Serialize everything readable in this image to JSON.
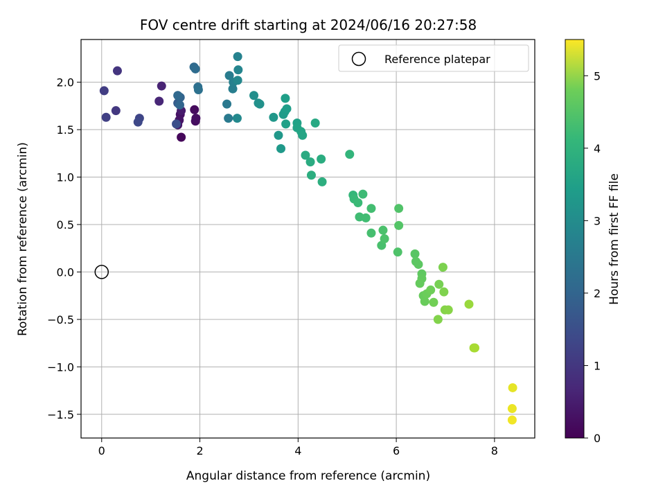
{
  "chart_data": {
    "type": "scatter",
    "title": "FOV centre drift starting at 2024/06/16 20:27:58",
    "xlabel": "Angular distance from reference (arcmin)",
    "ylabel": "Rotation from reference (arcmin)",
    "xlim": [
      -0.42,
      8.82
    ],
    "ylim": [
      -1.75,
      2.45
    ],
    "xticks": [
      0,
      2,
      4,
      6,
      8
    ],
    "xtick_labels": [
      "0",
      "2",
      "4",
      "6",
      "8"
    ],
    "yticks": [
      -1.5,
      -1.0,
      -0.5,
      0.0,
      0.5,
      1.0,
      1.5,
      2.0
    ],
    "ytick_labels": [
      "−1.5",
      "−1.0",
      "−0.5",
      "0.0",
      "0.5",
      "1.0",
      "1.5",
      "2.0"
    ],
    "grid": true,
    "legend": {
      "position": "top-right",
      "entries": [
        "Reference platepar"
      ]
    },
    "reference_point": {
      "x": 0.0,
      "y": 0.0
    },
    "colorbar": {
      "label": "Hours from first FF file",
      "range": [
        0,
        5.5
      ],
      "ticks": [
        0,
        1,
        2,
        3,
        4,
        5
      ],
      "tick_labels": [
        "0",
        "1",
        "2",
        "3",
        "4",
        "5"
      ],
      "colormap": "viridis"
    },
    "points": [
      [
        1.62,
        1.42,
        0.1
      ],
      [
        1.89,
        1.71,
        0.15
      ],
      [
        1.91,
        1.59,
        0.18
      ],
      [
        1.92,
        1.62,
        0.2
      ],
      [
        1.6,
        1.66,
        0.25
      ],
      [
        1.58,
        1.6,
        0.3
      ],
      [
        1.55,
        1.55,
        0.35
      ],
      [
        1.62,
        1.7,
        0.4
      ],
      [
        1.22,
        1.96,
        0.55
      ],
      [
        1.17,
        1.8,
        0.6
      ],
      [
        0.32,
        2.12,
        0.85
      ],
      [
        0.29,
        1.7,
        0.9
      ],
      [
        0.05,
        1.91,
        1.0
      ],
      [
        0.09,
        1.63,
        1.05
      ],
      [
        0.77,
        1.62,
        1.15
      ],
      [
        0.74,
        1.58,
        1.2
      ],
      [
        1.52,
        1.56,
        1.35
      ],
      [
        1.55,
        1.78,
        1.6
      ],
      [
        1.57,
        1.85,
        1.7
      ],
      [
        1.6,
        1.84,
        1.75
      ],
      [
        1.59,
        1.76,
        1.8
      ],
      [
        1.55,
        1.86,
        1.85
      ],
      [
        1.88,
        2.16,
        1.9
      ],
      [
        1.91,
        2.14,
        1.92
      ],
      [
        1.96,
        1.95,
        2.0
      ],
      [
        1.97,
        1.92,
        2.05
      ],
      [
        2.55,
        1.77,
        2.2
      ],
      [
        2.58,
        1.62,
        2.25
      ],
      [
        2.6,
        2.07,
        2.3
      ],
      [
        2.67,
        1.93,
        2.35
      ],
      [
        2.68,
        2.0,
        2.4
      ],
      [
        2.77,
        2.27,
        2.45
      ],
      [
        2.78,
        2.13,
        2.5
      ],
      [
        2.77,
        2.02,
        2.55
      ],
      [
        2.76,
        1.62,
        2.6
      ],
      [
        3.1,
        1.86,
        2.7
      ],
      [
        3.19,
        1.78,
        2.75
      ],
      [
        3.22,
        1.77,
        2.78
      ],
      [
        3.5,
        1.63,
        2.9
      ],
      [
        3.6,
        1.44,
        2.92
      ],
      [
        3.65,
        1.3,
        2.95
      ],
      [
        3.7,
        1.66,
        3.0
      ],
      [
        3.73,
        1.69,
        3.02
      ],
      [
        3.77,
        1.72,
        3.05
      ],
      [
        3.74,
        1.83,
        3.08
      ],
      [
        3.75,
        1.56,
        3.1
      ],
      [
        3.98,
        1.57,
        3.15
      ],
      [
        3.98,
        1.52,
        3.18
      ],
      [
        4.06,
        1.48,
        3.2
      ],
      [
        4.09,
        1.44,
        3.22
      ],
      [
        4.35,
        1.57,
        3.3
      ],
      [
        4.15,
        1.23,
        3.35
      ],
      [
        4.25,
        1.16,
        3.38
      ],
      [
        4.47,
        1.19,
        3.4
      ],
      [
        4.49,
        0.95,
        3.45
      ],
      [
        4.27,
        1.02,
        3.42
      ],
      [
        5.05,
        1.24,
        3.6
      ],
      [
        5.12,
        0.81,
        3.65
      ],
      [
        5.14,
        0.77,
        3.7
      ],
      [
        5.22,
        0.73,
        3.72
      ],
      [
        5.32,
        0.82,
        3.75
      ],
      [
        5.25,
        0.58,
        3.78
      ],
      [
        5.38,
        0.57,
        3.8
      ],
      [
        5.49,
        0.67,
        3.82
      ],
      [
        5.49,
        0.41,
        3.85
      ],
      [
        5.7,
        0.28,
        3.88
      ],
      [
        5.73,
        0.44,
        3.9
      ],
      [
        5.76,
        0.35,
        3.92
      ],
      [
        6.03,
        0.21,
        3.95
      ],
      [
        6.05,
        0.67,
        3.97
      ],
      [
        6.05,
        0.49,
        4.0
      ],
      [
        6.38,
        0.19,
        4.05
      ],
      [
        6.4,
        0.11,
        4.08
      ],
      [
        6.45,
        0.08,
        4.1
      ],
      [
        6.52,
        -0.02,
        4.12
      ],
      [
        6.52,
        -0.07,
        4.15
      ],
      [
        6.48,
        -0.12,
        4.18
      ],
      [
        6.55,
        -0.25,
        4.2
      ],
      [
        6.58,
        -0.31,
        4.22
      ],
      [
        6.62,
        -0.23,
        4.25
      ],
      [
        6.7,
        -0.19,
        4.28
      ],
      [
        6.76,
        -0.32,
        4.3
      ],
      [
        6.87,
        -0.13,
        4.35
      ],
      [
        6.95,
        0.05,
        4.4
      ],
      [
        6.97,
        -0.21,
        4.42
      ],
      [
        6.85,
        -0.5,
        4.45
      ],
      [
        6.99,
        -0.4,
        4.48
      ],
      [
        7.06,
        -0.4,
        4.5
      ],
      [
        7.48,
        -0.34,
        4.65
      ],
      [
        7.58,
        -0.8,
        4.75
      ],
      [
        7.6,
        -0.8,
        4.78
      ],
      [
        8.37,
        -1.22,
        5.3
      ],
      [
        8.36,
        -1.44,
        5.35
      ],
      [
        8.36,
        -1.56,
        5.4
      ]
    ]
  }
}
